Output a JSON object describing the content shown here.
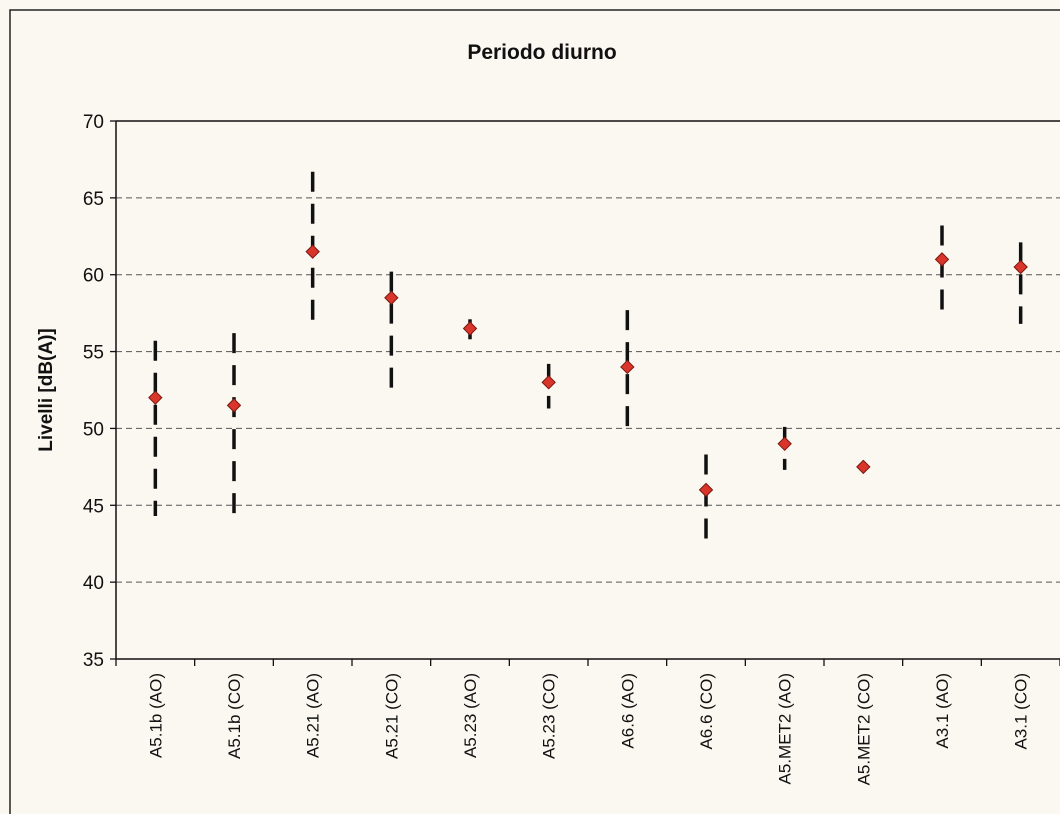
{
  "chart_data": {
    "type": "scatter",
    "title": "Periodo diurno",
    "xlabel": "",
    "ylabel": "Livelli [dB(A)]",
    "ylim": [
      35,
      70
    ],
    "yticks": [
      "35",
      "40",
      "45",
      "50",
      "55",
      "60",
      "65",
      "70"
    ],
    "grid": true,
    "categories": [
      "A5.1b (AO)",
      "A5.1b (CO)",
      "A5.21 (AO)",
      "A5.21 (CO)",
      "A5.23 (AO)",
      "A5.23 (CO)",
      "A6.6 (AO)",
      "A6.6 (CO)",
      "A5.MET2 (AO)",
      "A5.MET2 (CO)",
      "A3.1 (AO)",
      "A3.1 (CO)"
    ],
    "values": [
      52.0,
      51.5,
      61.5,
      58.5,
      56.5,
      53.0,
      54.0,
      46.0,
      49.0,
      47.5,
      61.0,
      60.5
    ],
    "range_low": [
      44.3,
      44.3,
      56.5,
      52.3,
      55.8,
      51.3,
      49.8,
      42.3,
      47.3,
      47.5,
      57.3,
      56.8
    ],
    "range_high": [
      55.7,
      56.2,
      66.7,
      60.2,
      57.1,
      54.2,
      57.7,
      48.3,
      50.1,
      47.5,
      63.2,
      62.1
    ],
    "marker_color": "#d9352a",
    "range_color": "#111111"
  }
}
